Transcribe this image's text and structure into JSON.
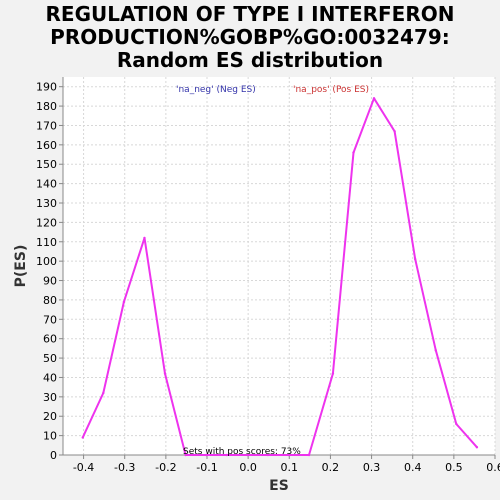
{
  "chart_data": {
    "type": "line",
    "title_lines": [
      "REGULATION OF TYPE I INTERFERON",
      "PRODUCTION%GOBP%GO:0032479:",
      "Random ES distribution"
    ],
    "xlabel": "ES",
    "ylabel": "P(ES)",
    "xlim": [
      -0.45,
      0.6
    ],
    "ylim": [
      0,
      195
    ],
    "x_ticks": [
      -0.4,
      -0.3,
      -0.2,
      -0.1,
      0.0,
      0.1,
      0.2,
      0.3,
      0.4,
      0.5,
      0.6
    ],
    "x_tick_labels": [
      "-0.4",
      "-0.3",
      "-0.2",
      "-0.1",
      "0.0",
      "0.1",
      "0.2",
      "0.3",
      "0.4",
      "0.5",
      "0.6"
    ],
    "y_ticks": [
      0,
      10,
      20,
      30,
      40,
      50,
      60,
      70,
      80,
      90,
      100,
      110,
      120,
      130,
      140,
      150,
      160,
      170,
      180,
      190
    ],
    "grid": true,
    "series": [
      {
        "name": "Random ES",
        "color": "#ee33ee",
        "x": [
          -0.402,
          -0.352,
          -0.302,
          -0.252,
          -0.202,
          -0.152,
          -0.102,
          -0.052,
          -0.002,
          0.048,
          0.098,
          0.148,
          0.206,
          0.256,
          0.306,
          0.356,
          0.406,
          0.456,
          0.506,
          0.556
        ],
        "y": [
          9,
          32,
          79,
          112,
          42,
          0,
          0,
          0,
          0,
          0,
          0,
          0,
          42,
          156,
          184,
          167,
          101,
          54,
          16,
          4
        ]
      }
    ],
    "legend": [
      {
        "label": "'na_neg' (Neg ES)",
        "color": "#3333aa"
      },
      {
        "label": "'na_pos' (Pos ES)",
        "color": "#cc3333"
      }
    ],
    "annotation": "Sets with pos scores: 73%"
  }
}
